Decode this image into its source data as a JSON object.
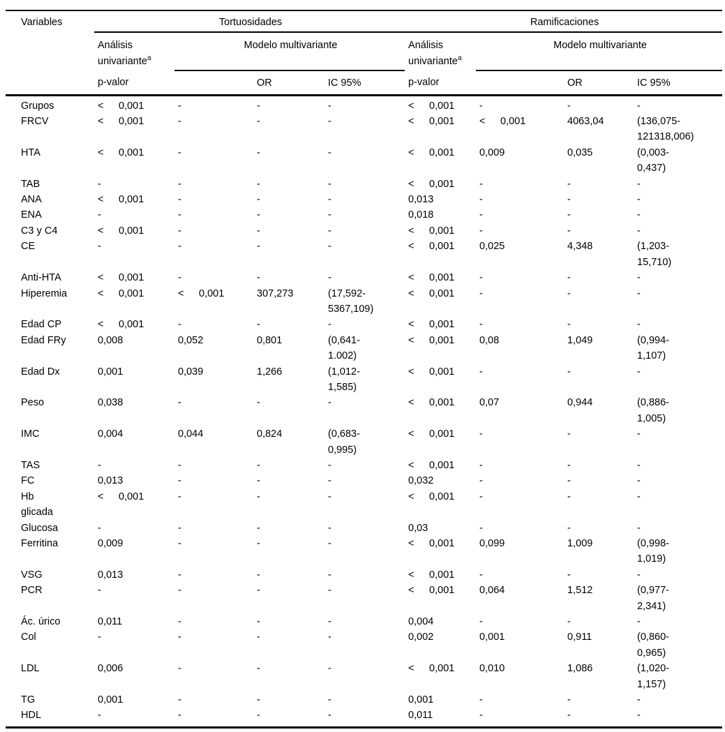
{
  "table": {
    "columns_header": "Variables",
    "sections": [
      {
        "title": "Tortuosidades"
      },
      {
        "title": "Ramificaciones"
      }
    ],
    "group_headers": {
      "univariante": "Análisis univariante",
      "univariante_sup": "a",
      "multivariante": "Modelo multivariante"
    },
    "column_labels": {
      "pvalor": "p-valor",
      "or": "OR",
      "ic": "IC 95%"
    },
    "rows": [
      {
        "variable": "Grupos",
        "cells": [
          "< 0,001",
          "-",
          "-",
          "-",
          "< 0,001",
          "-",
          "-",
          "-"
        ]
      },
      {
        "variable": "FRCV",
        "cells": [
          "< 0,001",
          "-",
          "-",
          "-",
          "< 0,001",
          "< 0,001",
          "4063,04",
          "(136,075-\n121318,006)"
        ]
      },
      {
        "variable": "HTA",
        "cells": [
          "< 0,001",
          "-",
          "-",
          "-",
          "< 0,001",
          "0,009",
          "0,035",
          "(0,003-\n0,437)"
        ]
      },
      {
        "variable": "TAB",
        "cells": [
          "-",
          "-",
          "-",
          "-",
          "< 0,001",
          "-",
          "-",
          "-"
        ]
      },
      {
        "variable": "ANA",
        "cells": [
          "< 0,001",
          "-",
          "-",
          "-",
          "0,013",
          "-",
          "-",
          "-"
        ]
      },
      {
        "variable": "ENA",
        "cells": [
          "-",
          "-",
          "-",
          "-",
          "0,018",
          "-",
          "-",
          "-"
        ]
      },
      {
        "variable": "C3 y C4",
        "cells": [
          "< 0,001",
          "-",
          "-",
          "-",
          "< 0,001",
          "-",
          "-",
          "-"
        ]
      },
      {
        "variable": "CE",
        "cells": [
          "-",
          "-",
          "-",
          "-",
          "< 0,001",
          "0,025",
          "4,348",
          "(1,203-\n15,710)"
        ]
      },
      {
        "variable": "Anti-HTA",
        "cells": [
          "< 0,001",
          "-",
          "-",
          "-",
          "< 0,001",
          "-",
          "-",
          "-"
        ]
      },
      {
        "variable": "Hiperemia",
        "cells": [
          "< 0,001",
          "< 0,001",
          "307,273",
          "(17,592-\n5367,109)",
          "< 0,001",
          "-",
          "-",
          "-"
        ]
      },
      {
        "variable": "Edad CP",
        "cells": [
          "< 0,001",
          "-",
          "-",
          "-",
          "< 0,001",
          "-",
          "-",
          "-"
        ]
      },
      {
        "variable": "Edad FRy",
        "cells": [
          "0,008",
          "0,052",
          "0,801",
          "(0,641-\n1.002)",
          "< 0,001",
          "0,08",
          "1,049",
          "(0,994-\n1,107)"
        ]
      },
      {
        "variable": "Edad Dx",
        "cells": [
          "0,001",
          "0,039",
          "1,266",
          "(1,012-\n1,585)",
          "< 0,001",
          "-",
          "-",
          "-"
        ]
      },
      {
        "variable": "Peso",
        "cells": [
          "0,038",
          "-",
          "-",
          "-",
          "< 0,001",
          "0,07",
          "0,944",
          "(0,886-\n1,005)"
        ]
      },
      {
        "variable": "IMC",
        "cells": [
          "0,004",
          "0,044",
          "0,824",
          "(0,683-\n0,995)",
          "< 0,001",
          "-",
          "-",
          "-"
        ]
      },
      {
        "variable": "TAS",
        "cells": [
          "-",
          "-",
          "-",
          "-",
          "< 0,001",
          "-",
          "-",
          "-"
        ]
      },
      {
        "variable": "FC",
        "cells": [
          "0,013",
          "-",
          "-",
          "-",
          "0,032",
          "-",
          "-",
          "-"
        ]
      },
      {
        "variable": "Hb\nglicada",
        "cells": [
          "< 0,001",
          "-",
          "-",
          "-",
          "< 0,001",
          "-",
          "-",
          "-"
        ]
      },
      {
        "variable": "Glucosa",
        "cells": [
          "-",
          "-",
          "-",
          "-",
          "0,03",
          "-",
          "-",
          "-"
        ]
      },
      {
        "variable": "Ferritina",
        "cells": [
          "0,009",
          "-",
          "-",
          "-",
          "< 0,001",
          "0,099",
          "1,009",
          "(0,998-\n1,019)"
        ]
      },
      {
        "variable": "VSG",
        "cells": [
          "0,013",
          "-",
          "-",
          "-",
          "< 0,001",
          "-",
          "-",
          "-"
        ]
      },
      {
        "variable": "PCR",
        "cells": [
          "-",
          "-",
          "-",
          "-",
          "< 0,001",
          "0,064",
          "1,512",
          "(0,977-\n2,341)"
        ]
      },
      {
        "variable": "Ác. úrico",
        "cells": [
          "0,011",
          "-",
          "-",
          "-",
          "0,004",
          "-",
          "-",
          "-"
        ]
      },
      {
        "variable": "Col",
        "cells": [
          "-",
          "-",
          "-",
          "-",
          "0,002",
          "0,001",
          "0,911",
          "(0,860-\n0,965)"
        ]
      },
      {
        "variable": "LDL",
        "cells": [
          "0,006",
          "-",
          "-",
          "-",
          "< 0,001",
          "0,010",
          "1,086",
          "(1,020-\n1,157)"
        ]
      },
      {
        "variable": "TG",
        "cells": [
          "0,001",
          "-",
          "-",
          "-",
          "0,001",
          "-",
          "-",
          "-"
        ]
      },
      {
        "variable": "HDL",
        "cells": [
          "-",
          "-",
          "-",
          "-",
          "0,011",
          "-",
          "-",
          "-"
        ]
      }
    ]
  }
}
